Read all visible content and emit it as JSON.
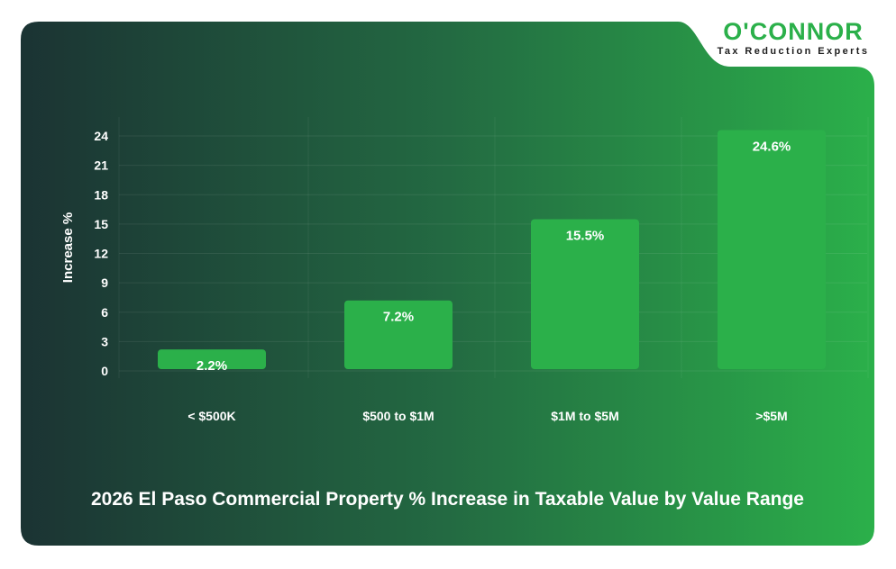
{
  "brand": {
    "name": "O'CONNOR",
    "tagline": "Tax Reduction Experts",
    "color": "#2bb04a"
  },
  "chart_data": {
    "type": "bar",
    "title": "2026 El Paso Commercial Property % Increase in Taxable Value by Value Range",
    "xlabel": "",
    "ylabel": "Increase %",
    "categories": [
      "< $500K",
      "$500 to $1M",
      "$1M to $5M",
      ">$5M"
    ],
    "values": [
      2.2,
      7.2,
      15.5,
      24.6
    ],
    "data_labels": [
      "2.2%",
      "7.2%",
      "15.5%",
      "24.6%"
    ],
    "yticks": [
      0,
      3,
      6,
      9,
      12,
      15,
      18,
      21,
      24
    ],
    "ylim": [
      0,
      24.6
    ],
    "grid": true,
    "bar_color": "#2bb04a",
    "background_gradient": [
      "#1c3434",
      "#2bb04a"
    ]
  }
}
